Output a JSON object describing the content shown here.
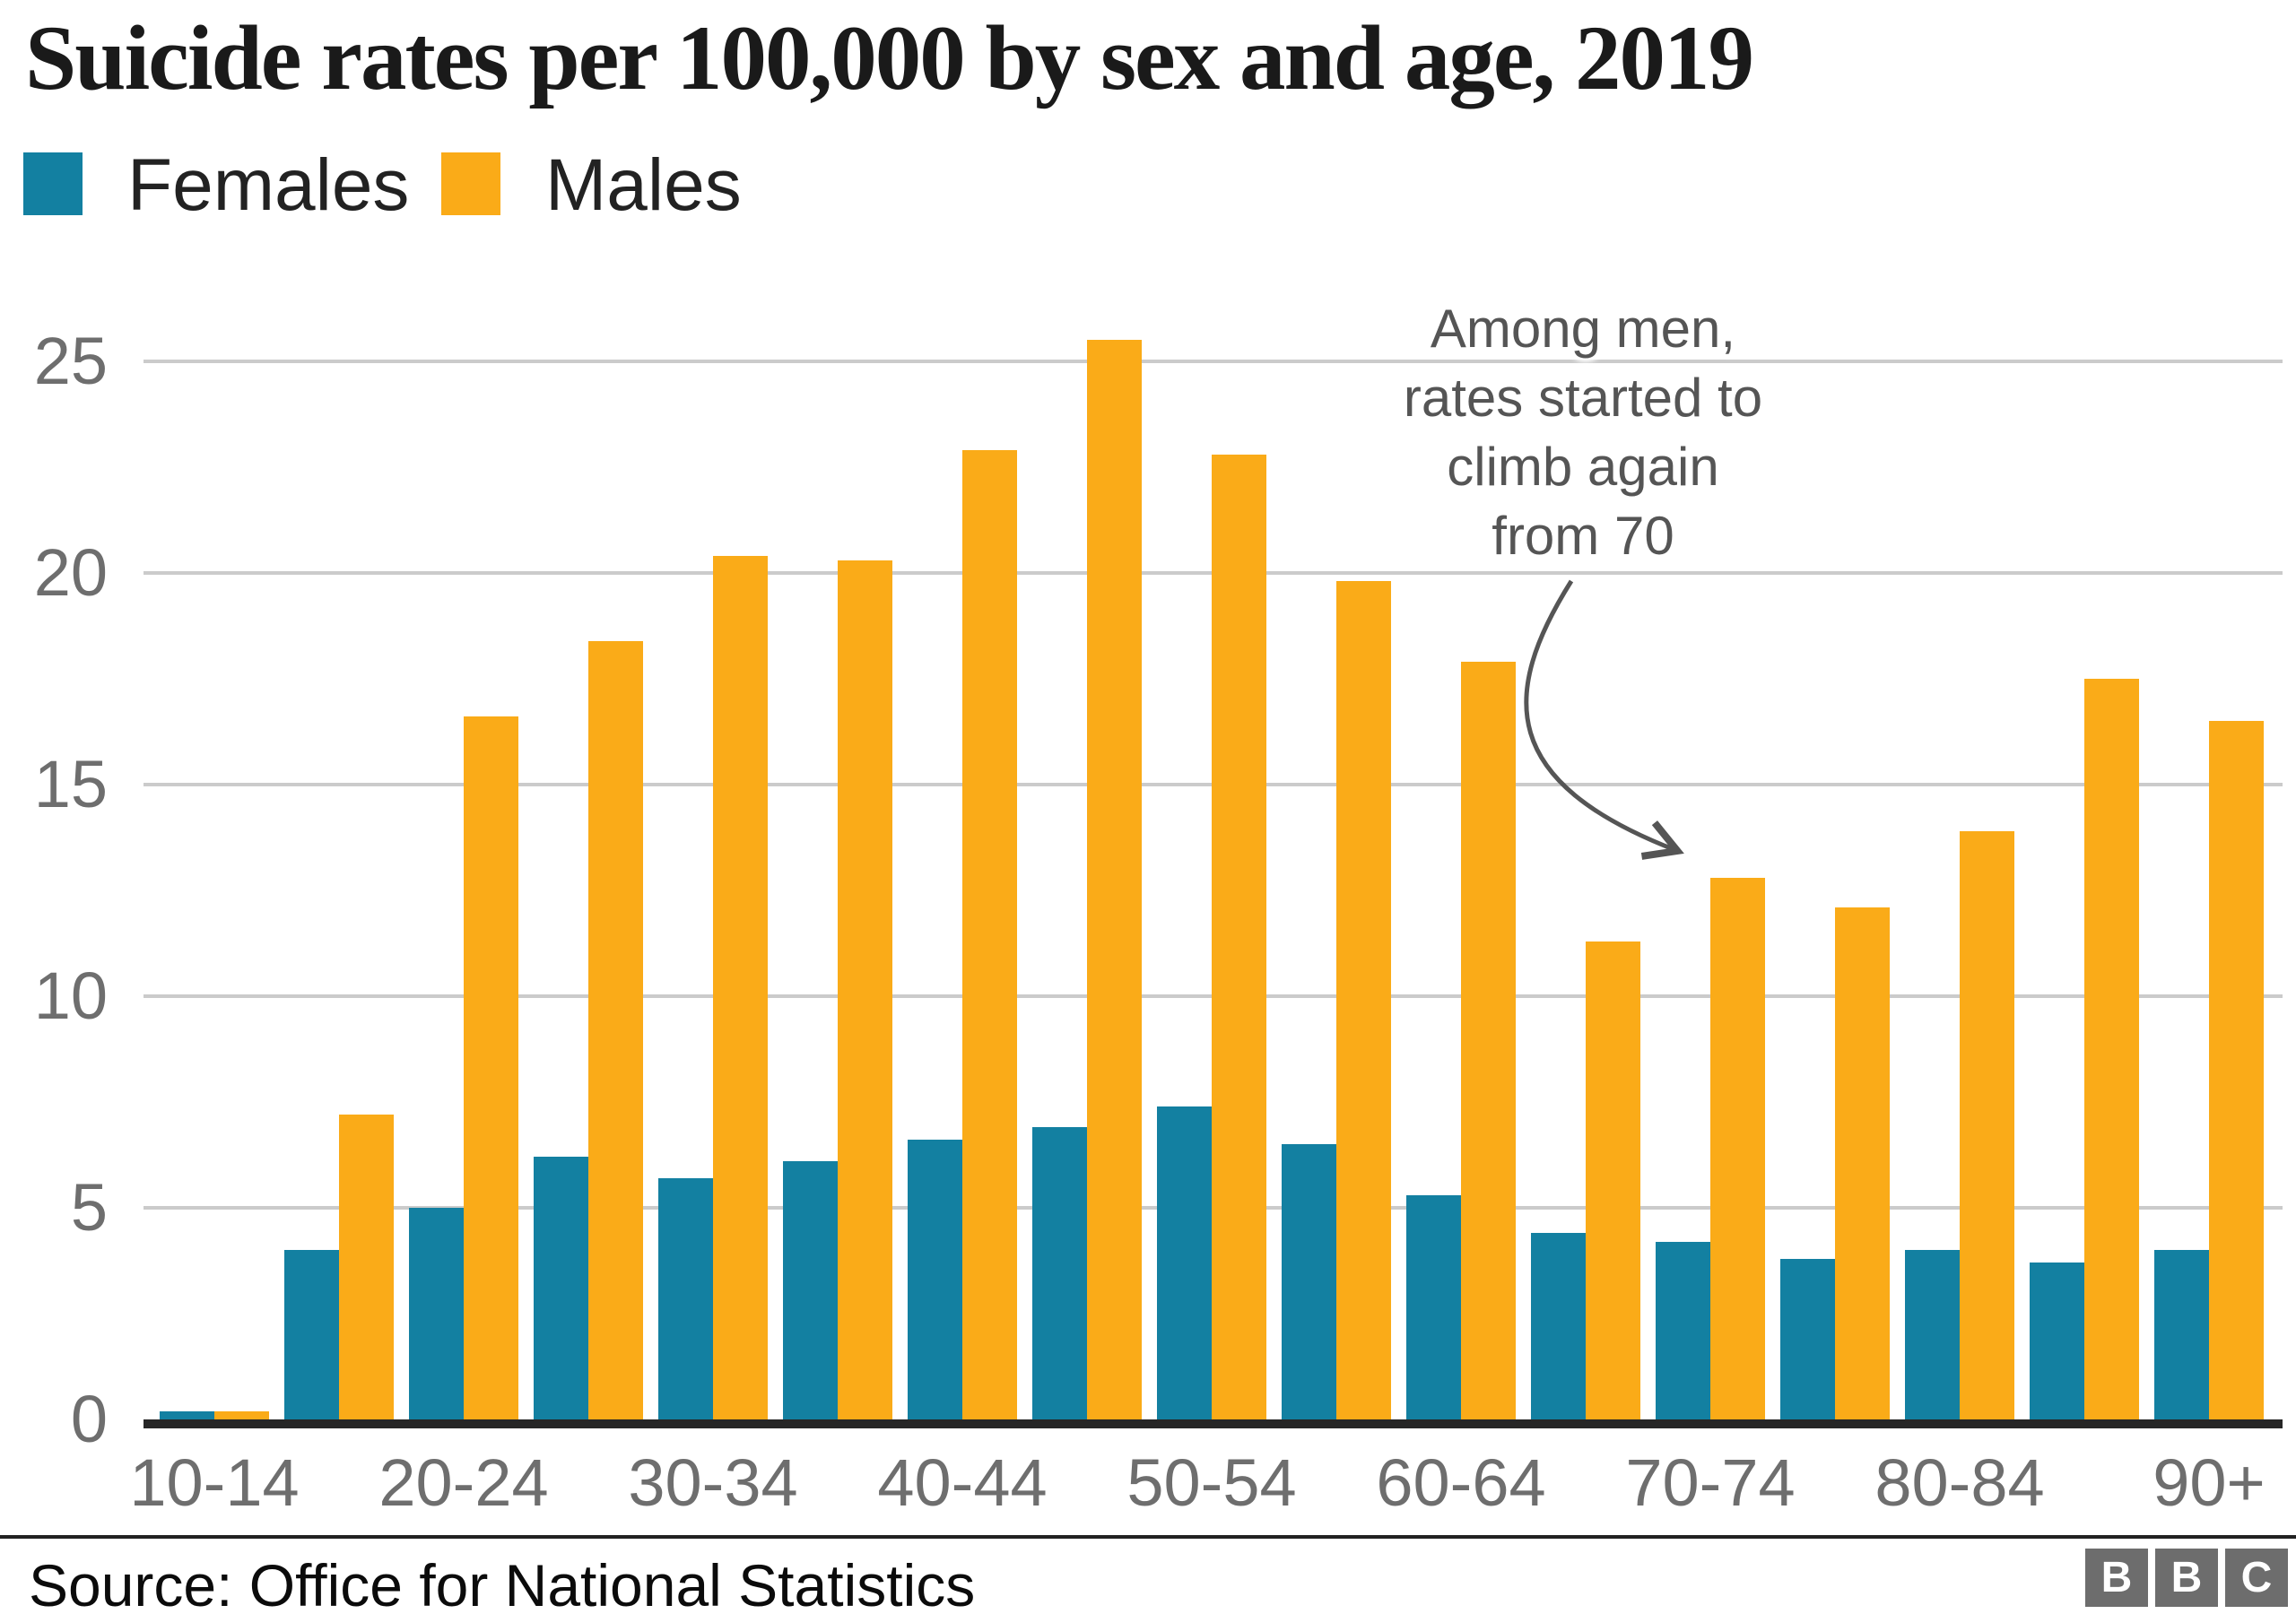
{
  "title": "Suicide rates per 100,000 by sex and age, 2019",
  "legend": {
    "items": [
      {
        "label": "Females",
        "color": "#1380A1"
      },
      {
        "label": "Males",
        "color": "#FAAB18"
      }
    ]
  },
  "chart_data": {
    "type": "bar",
    "title": "Suicide rates per 100,000 by sex and age, 2019",
    "categories": [
      "10-14",
      "15-19",
      "20-24",
      "25-29",
      "30-34",
      "35-39",
      "40-44",
      "45-49",
      "50-54",
      "55-59",
      "60-64",
      "65-69",
      "70-74",
      "75-79",
      "80-84",
      "85-89",
      "90+"
    ],
    "x_tick_labels": [
      "10-14",
      "20-24",
      "30-34",
      "40-44",
      "50-54",
      "60-64",
      "70-74",
      "80-84",
      "90+"
    ],
    "series": [
      {
        "name": "Females",
        "color": "#1380A1",
        "values": [
          0.2,
          4.0,
          5.0,
          6.2,
          5.7,
          6.1,
          6.6,
          6.9,
          7.4,
          6.5,
          5.3,
          4.4,
          4.2,
          3.8,
          4.0,
          3.7,
          4.0
        ]
      },
      {
        "name": "Males",
        "color": "#FAAB18",
        "values": [
          0.2,
          7.2,
          16.6,
          18.4,
          20.4,
          20.3,
          22.9,
          25.5,
          22.8,
          19.8,
          17.9,
          11.3,
          12.8,
          12.1,
          13.9,
          17.5,
          16.5
        ]
      }
    ],
    "xlabel": "",
    "ylabel": "",
    "ylim": [
      0,
      25
    ],
    "y_ticks": [
      0,
      5,
      10,
      15,
      20,
      25
    ],
    "grid": "horizontal",
    "legend_position": "top-left"
  },
  "annotation": {
    "lines": [
      "Among men,",
      "rates started to",
      "climb again",
      "from 70"
    ],
    "color": "#555555"
  },
  "axis_colors": {
    "gridline": "#cbcbcb",
    "baseline": "#262626",
    "tick_text": "#6e6e6e"
  },
  "source": {
    "label": "Source: Office for National Statistics"
  },
  "logo": {
    "letters": [
      "B",
      "B",
      "C"
    ],
    "block_color": "#6d6d6d"
  }
}
